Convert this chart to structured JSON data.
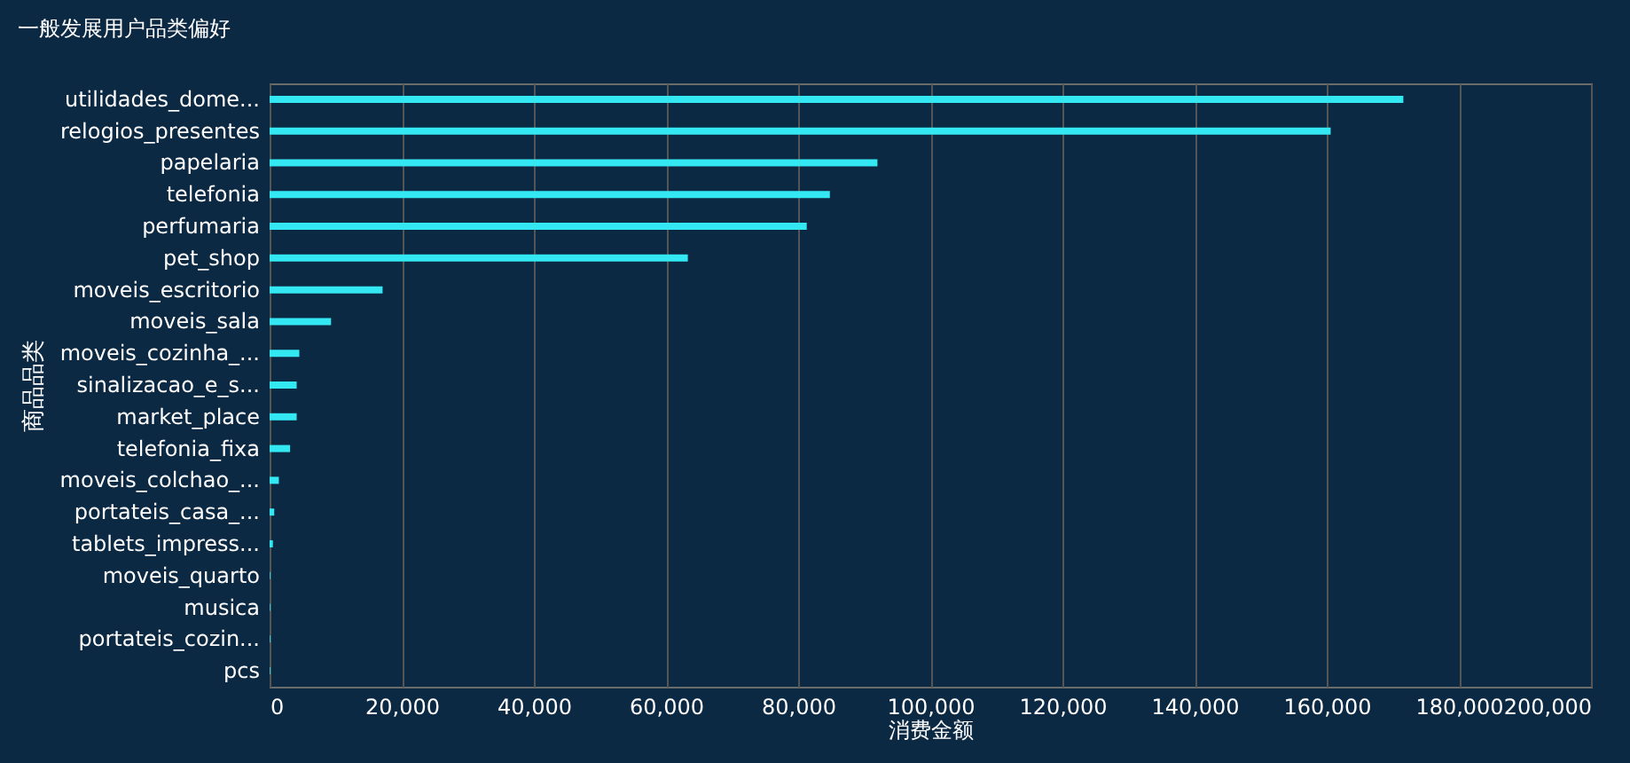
{
  "chart_data": {
    "type": "bar",
    "orientation": "horizontal",
    "title": "一般发展用户品类偏好",
    "xlabel": "消费金额",
    "ylabel": "商品品类",
    "categories": [
      "utilidades_dome...",
      "relogios_presentes",
      "papelaria",
      "telefonia",
      "perfumaria",
      "pet_shop",
      "moveis_escritorio",
      "moveis_sala",
      "moveis_cozinha_...",
      "sinalizacao_e_s...",
      "market_place",
      "telefonia_fixa",
      "moveis_colchao_...",
      "portateis_casa_...",
      "tablets_impress...",
      "moveis_quarto",
      "musica",
      "portateis_cozin...",
      "pcs"
    ],
    "values": [
      171600,
      160600,
      92000,
      84800,
      81300,
      63300,
      17100,
      9300,
      4500,
      4100,
      4100,
      3100,
      1400,
      700,
      500,
      100,
      100,
      100,
      100
    ],
    "color": "#33e8f2",
    "xlim": [
      0,
      200000
    ],
    "xticks": [
      0,
      {
        "value": 20000,
        "label": "20,000"
      },
      {
        "value": 40000,
        "label": "40,000"
      },
      {
        "value": 60000,
        "label": "60,000"
      },
      {
        "value": 80000,
        "label": "80,000"
      },
      {
        "value": 100000,
        "label": "100,000"
      },
      {
        "value": 120000,
        "label": "120,000"
      },
      {
        "value": 140000,
        "label": "140,000"
      },
      {
        "value": 160000,
        "label": "160,000"
      },
      {
        "value": 180000,
        "label": "180,000"
      },
      {
        "value": 200000,
        "label": "200,000"
      }
    ],
    "grid": "x"
  }
}
